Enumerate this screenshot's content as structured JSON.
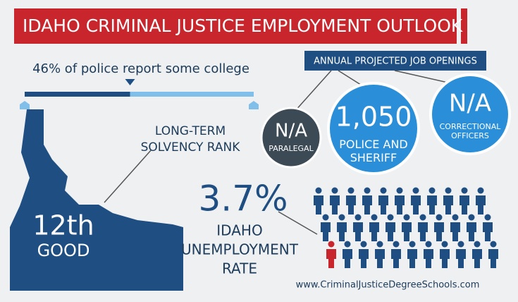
{
  "header": {
    "title": "IDAHO CRIMINAL JUSTICE EMPLOYMENT OUTLOOK"
  },
  "college": {
    "label": "46% of police report some college",
    "value": 46
  },
  "openings": {
    "title": "ANNUAL PROJECTED JOB OPENINGS",
    "items": [
      {
        "value": "N/A",
        "label": "PARALEGAL"
      },
      {
        "value": "1,050",
        "label": "POLICE AND SHERIFF"
      },
      {
        "value": "N/A",
        "label": "CORRECTIONAL OFFICERS"
      }
    ]
  },
  "solvency": {
    "label": [
      "LONG-TERM",
      "SOLVENCY RANK"
    ],
    "rank": "12th",
    "rating": "GOOD"
  },
  "unemployment": {
    "value": "3.7%",
    "label": [
      "IDAHO",
      "UNEMPLOYMENT",
      "RATE"
    ]
  },
  "footer": {
    "url": "www.CriminalJusticeDegreeSchools.com"
  }
}
